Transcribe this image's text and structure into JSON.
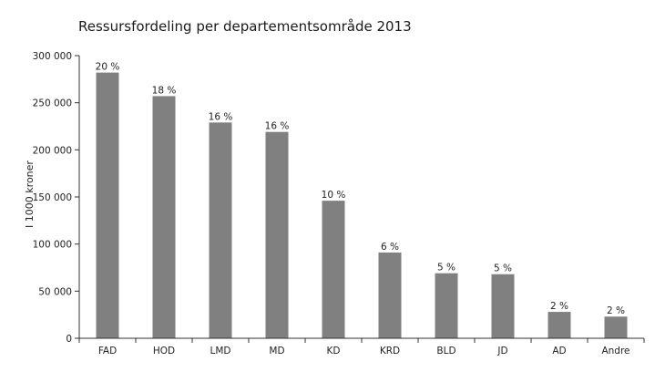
{
  "chart_data": {
    "type": "bar",
    "title": "Ressursfordeling per departementsområde 2013",
    "xlabel": "",
    "ylabel": "I 1000 kroner",
    "categories": [
      "FAD",
      "HOD",
      "LMD",
      "MD",
      "KD",
      "KRD",
      "BLD",
      "JD",
      "AD",
      "Andre"
    ],
    "values": [
      282000,
      257000,
      229000,
      219000,
      146000,
      91000,
      69000,
      68000,
      28000,
      23000
    ],
    "data_labels": [
      "20 %",
      "18 %",
      "16 %",
      "16 %",
      "10 %",
      "6 %",
      "5 %",
      "5 %",
      "2 %",
      "2 %"
    ],
    "ylim": [
      0,
      300000
    ],
    "yticks": [
      0,
      50000,
      100000,
      150000,
      200000,
      250000,
      300000
    ],
    "ytick_labels": [
      "0",
      "50 000",
      "100 000",
      "150 000",
      "200 000",
      "250 000",
      "300 000"
    ],
    "grid": false,
    "legend": "none",
    "bar_color": "#808080"
  }
}
